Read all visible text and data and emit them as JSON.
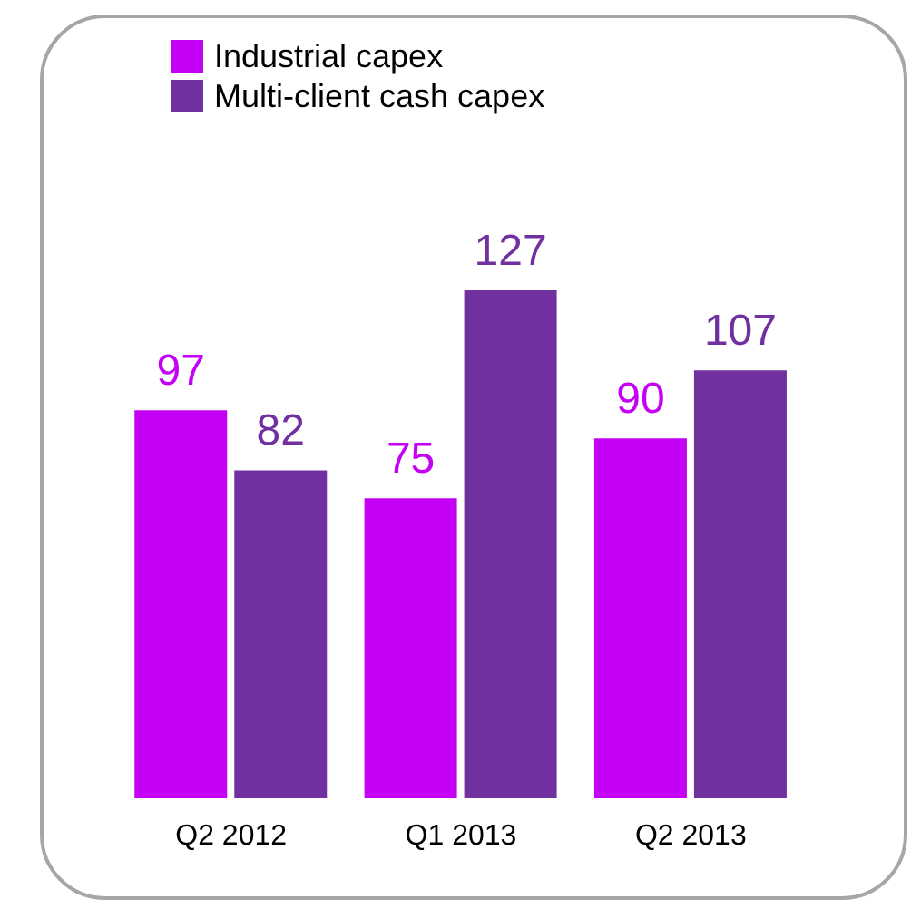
{
  "chart_data": {
    "type": "bar",
    "categories": [
      "Q2 2012",
      "Q1 2013",
      "Q2 2013"
    ],
    "series": [
      {
        "name": "Industrial capex",
        "color": "#c400f5",
        "values": [
          97,
          75,
          90
        ]
      },
      {
        "name": "Multi-client cash capex",
        "color": "#7030a0",
        "values": [
          82,
          127,
          107
        ]
      }
    ],
    "data_labels": true,
    "legend": "top left"
  }
}
